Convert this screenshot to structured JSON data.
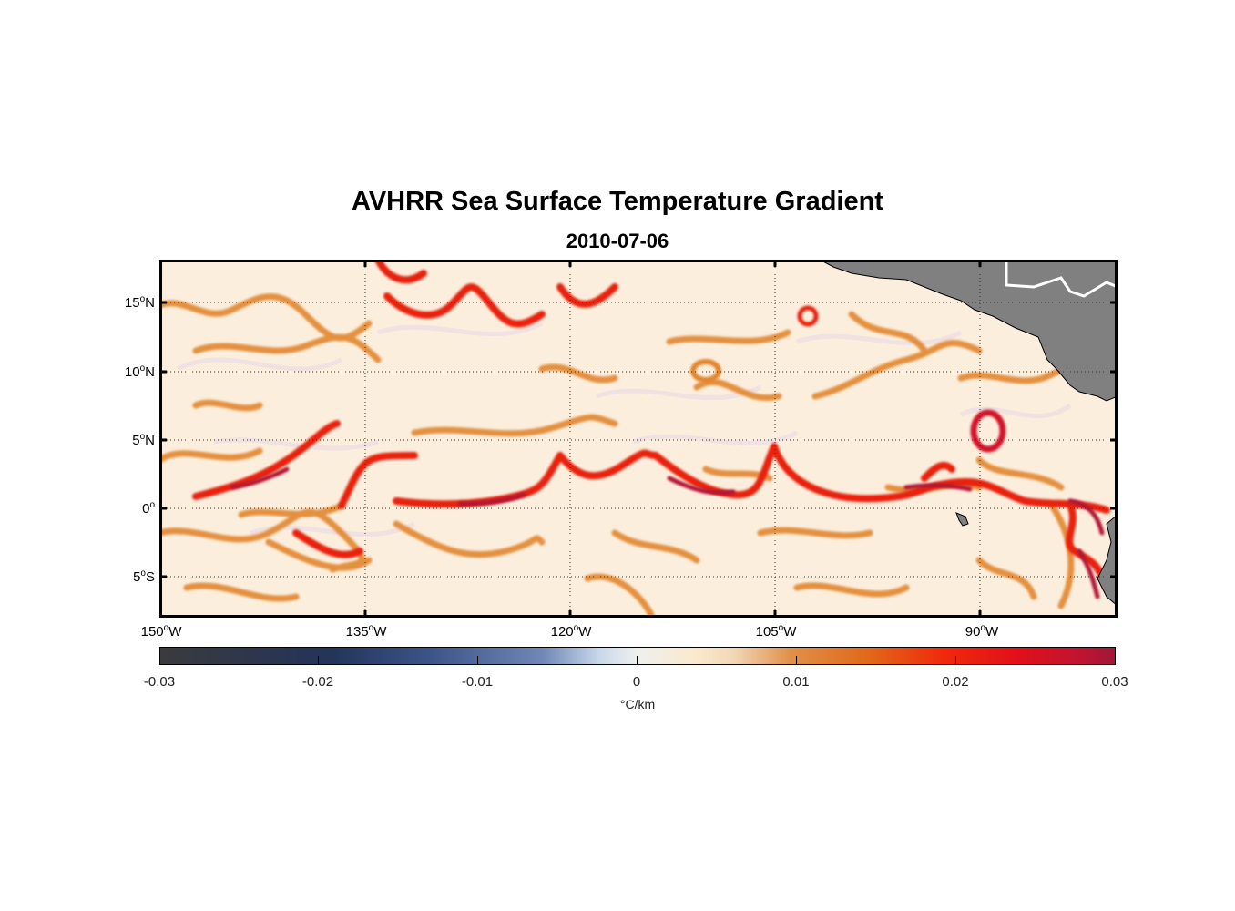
{
  "figure": {
    "title": "AVHRR Sea Surface Temperature Gradient",
    "subtitle": "2010-07-06"
  },
  "map": {
    "lat_ticks": [
      {
        "deg": "15",
        "hemi": "N",
        "lat": 15
      },
      {
        "deg": "10",
        "hemi": "N",
        "lat": 10
      },
      {
        "deg": "5",
        "hemi": "N",
        "lat": 5
      },
      {
        "deg": "0",
        "hemi": "",
        "lat": 0
      },
      {
        "deg": "5",
        "hemi": "S",
        "lat": -5
      }
    ],
    "lon_ticks": [
      {
        "deg": "150",
        "hemi": "W",
        "lon": -150
      },
      {
        "deg": "135",
        "hemi": "W",
        "lon": -135
      },
      {
        "deg": "120",
        "hemi": "W",
        "lon": -120
      },
      {
        "deg": "105",
        "hemi": "W",
        "lon": -105
      },
      {
        "deg": "90",
        "hemi": "W",
        "lon": -90
      }
    ],
    "lon_range": [
      -150,
      -80
    ],
    "lat_range": [
      -8,
      18
    ],
    "grid": "dotted",
    "land_color": "#808080",
    "background_color": "#fbeedd"
  },
  "colorbar": {
    "ticks": [
      "-0.03",
      "-0.02",
      "-0.01",
      "0",
      "0.01",
      "0.02",
      "0.03"
    ],
    "range": [
      -0.03,
      0.03
    ],
    "unit": "°C/km",
    "colors": {
      "low": "#3b3b3d",
      "mid": "#eef0ee",
      "high": "#a01838"
    }
  }
}
